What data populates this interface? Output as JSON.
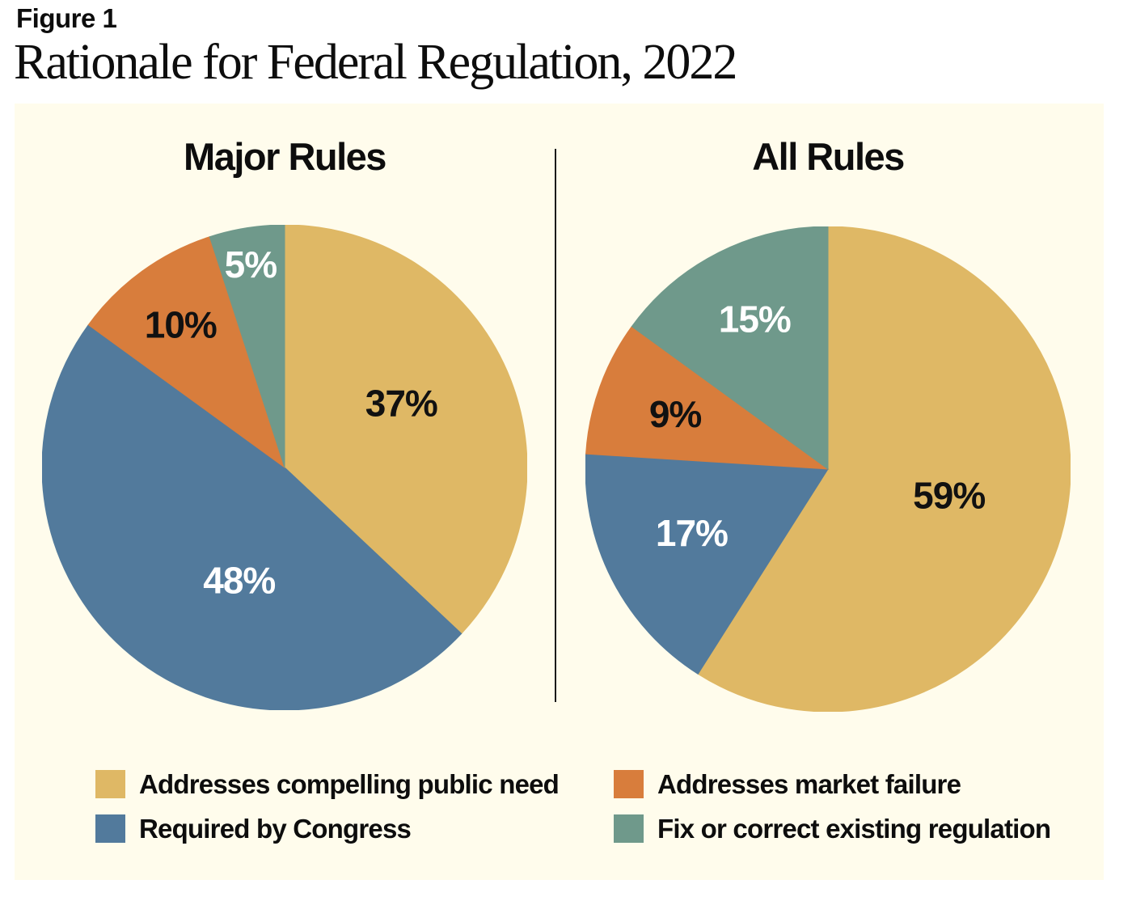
{
  "header": {
    "figure_label": "Figure 1",
    "title": "Rationale for Federal Regulation, 2022"
  },
  "colors": {
    "panel_background": "#FFFCEC",
    "page_background": "#FFFFFF",
    "compelling_public_need": "#DFB865",
    "required_by_congress": "#527A9C",
    "market_failure": "#D87D3C",
    "fix_existing_regulation": "#6F998B",
    "text_dark": "#0D0D0D",
    "divider": "#1A1A1A"
  },
  "chart_data": [
    {
      "type": "pie",
      "title": "Major Rules",
      "legend_position": "bottom",
      "slices": [
        {
          "label": "Addresses compelling public need",
          "value": 37,
          "display": "37%",
          "color": "#DFB865",
          "label_color": "#111111",
          "label_a": 61,
          "label_r": 0.55
        },
        {
          "label": "Required by Congress",
          "value": 48,
          "display": "48%",
          "color": "#527A9C",
          "label_color": "#FFFFFF",
          "label_a": 202,
          "label_r": 0.5
        },
        {
          "label": "Addresses market failure",
          "value": 10,
          "display": "10%",
          "color": "#D87D3C",
          "label_color": "#111111",
          "label_a": 324,
          "label_r": 0.73
        },
        {
          "label": "Fix or correct existing regulation",
          "value": 5,
          "display": "5%",
          "color": "#6F998B",
          "label_color": "#FFFFFF",
          "label_a": 350.5,
          "label_r": 0.85
        }
      ]
    },
    {
      "type": "pie",
      "title": "All Rules",
      "legend_position": "bottom",
      "slices": [
        {
          "label": "Addresses compelling public need",
          "value": 59,
          "display": "59%",
          "color": "#DFB865",
          "label_color": "#111111",
          "label_a": 102,
          "label_r": 0.51
        },
        {
          "label": "Required by Congress",
          "value": 17,
          "display": "17%",
          "color": "#527A9C",
          "label_color": "#FFFFFF",
          "label_a": 245,
          "label_r": 0.62
        },
        {
          "label": "Addresses market failure",
          "value": 9,
          "display": "9%",
          "color": "#D87D3C",
          "label_color": "#111111",
          "label_a": 290,
          "label_r": 0.67
        },
        {
          "label": "Fix or correct existing regulation",
          "value": 15,
          "display": "15%",
          "color": "#6F998B",
          "label_color": "#FFFFFF",
          "label_a": 334,
          "label_r": 0.69
        }
      ]
    }
  ],
  "legend": {
    "items": [
      {
        "label": "Addresses compelling public need",
        "color": "#DFB865"
      },
      {
        "label": "Required by Congress",
        "color": "#527A9C"
      },
      {
        "label": "Addresses market failure",
        "color": "#D87D3C"
      },
      {
        "label": "Fix or correct existing regulation",
        "color": "#6F998B"
      }
    ]
  }
}
